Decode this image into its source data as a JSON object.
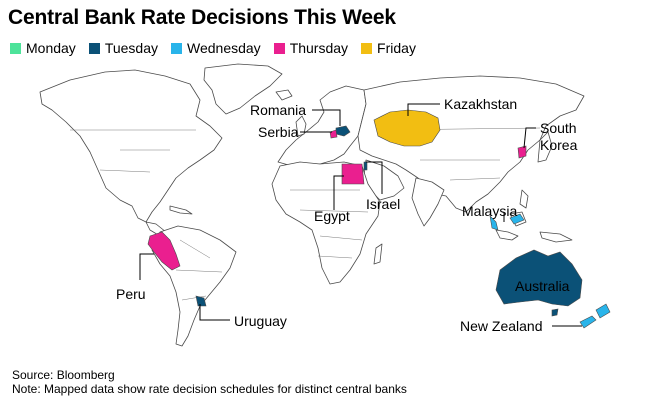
{
  "title": "Central Bank Rate Decisions This Week",
  "legend": [
    {
      "label": "Monday",
      "color": "#4de39a"
    },
    {
      "label": "Tuesday",
      "color": "#0b5177"
    },
    {
      "label": "Wednesday",
      "color": "#29b4ea"
    },
    {
      "label": "Thursday",
      "color": "#ea1f8f"
    },
    {
      "label": "Friday",
      "color": "#f2be12"
    }
  ],
  "countries": {
    "romania": {
      "label": "Romania",
      "day": "Tuesday"
    },
    "serbia": {
      "label": "Serbia",
      "day": "Thursday"
    },
    "kazakhstan": {
      "label": "Kazakhstan",
      "day": "Friday"
    },
    "south_korea": {
      "label": "South Korea",
      "label_line1": "South",
      "label_line2": "Korea",
      "day": "Thursday"
    },
    "egypt": {
      "label": "Egypt",
      "day": "Thursday"
    },
    "israel": {
      "label": "Israel",
      "day": "Tuesday"
    },
    "malaysia": {
      "label": "Malaysia",
      "day": "Wednesday"
    },
    "peru": {
      "label": "Peru",
      "day": "Thursday"
    },
    "uruguay": {
      "label": "Uruguay",
      "day": "Tuesday"
    },
    "australia": {
      "label": "Australia",
      "day": "Tuesday"
    },
    "new_zealand": {
      "label": "New Zealand",
      "day": "Wednesday"
    }
  },
  "footer": {
    "source": "Source: Bloomberg",
    "note": "Note: Mapped data show rate decision schedules for distinct central banks"
  }
}
